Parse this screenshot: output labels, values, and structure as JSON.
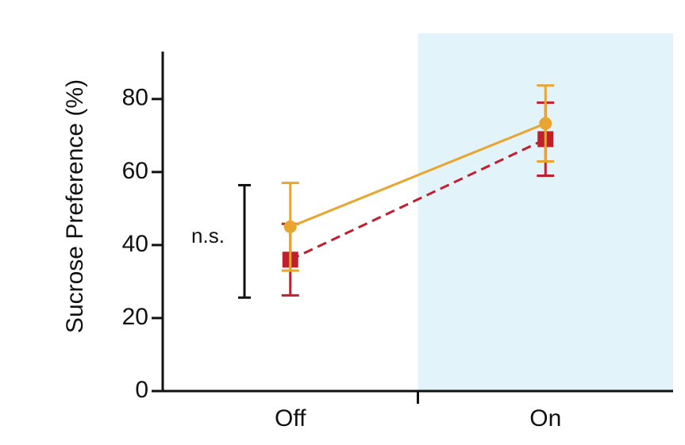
{
  "chart_data": {
    "type": "line",
    "y_label": "Sucrose Preference (%)",
    "categories": [
      "Off",
      "On"
    ],
    "series": [
      {
        "color": "#e8a530",
        "marker": "circle",
        "dash": false,
        "values": [
          45,
          73.3
        ],
        "errors": [
          12,
          10.4
        ]
      },
      {
        "color": "#c0202e",
        "marker": "square",
        "dash": true,
        "values": [
          36,
          69
        ],
        "errors": [
          9.8,
          10
        ]
      }
    ],
    "ylim": [
      0,
      93
    ],
    "yticks": [
      0,
      20,
      40,
      60,
      80
    ],
    "shaded": "On",
    "shade_color": "#e2f3f9",
    "bracket": {
      "label": "n.s.",
      "range": [
        25.6,
        56.4
      ]
    }
  }
}
